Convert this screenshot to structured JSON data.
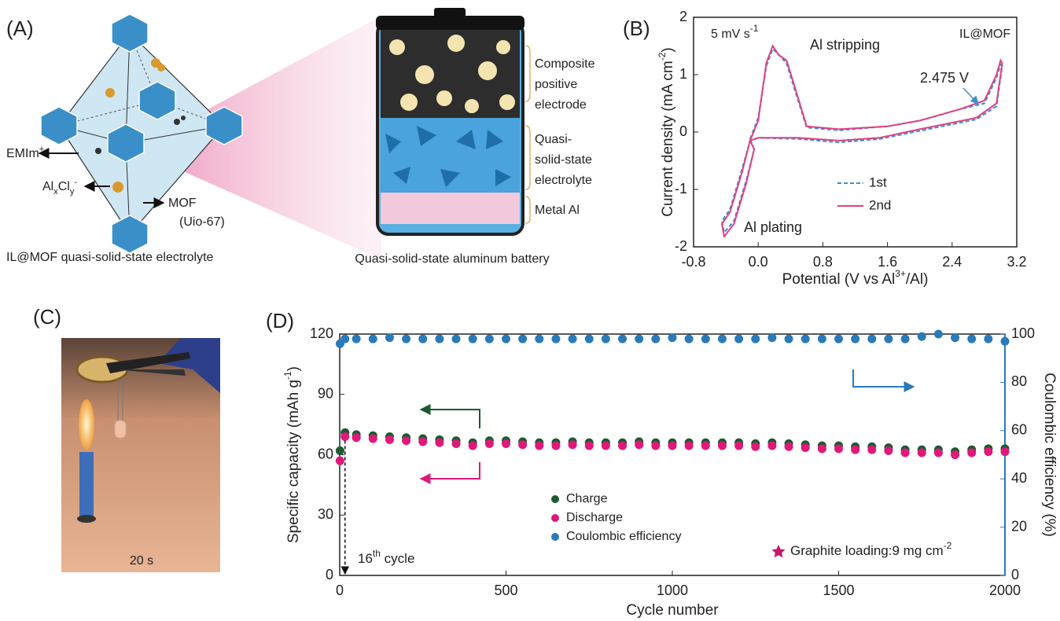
{
  "panel_labels": [
    "(A)",
    "(B)",
    "(C)",
    "(D)"
  ],
  "panel_a": {
    "ion_emim": [
      "EMIm",
      "+"
    ],
    "ion_alcl": [
      "Al",
      "x",
      "Cl",
      "y",
      "-"
    ],
    "mof": [
      "MOF",
      "(Uio-67)"
    ],
    "caption_left": "IL@MOF quasi-solid-state electrolyte",
    "layers": [
      [
        "Composite",
        "positive",
        "electrode"
      ],
      [
        "Quasi-",
        "solid-state",
        "electrolyte"
      ],
      [
        "Metal Al"
      ]
    ],
    "caption_right": "Quasi-solid-state aluminum battery"
  },
  "panel_c": {
    "time": "20 s"
  },
  "chart_data": [
    {
      "type": "line",
      "xlabel": [
        "Potential (V vs Al",
        "3+",
        "/Al)"
      ],
      "ylabel": [
        "Current density (mA cm",
        "-2",
        ")"
      ],
      "rate": [
        "5 mV s",
        "-1"
      ],
      "sample": "IL@MOF",
      "annotations": [
        "Al stripping",
        "2.475 V",
        "Al plating"
      ],
      "xlim": [
        -0.8,
        3.2
      ],
      "xticks": [
        -0.8,
        {
          "value": 0,
          "label": "0.0"
        },
        0.8,
        1.6,
        2.4,
        3.2
      ],
      "ylim": [
        -2,
        2
      ],
      "yticks": [
        -2,
        -1,
        0,
        1,
        2
      ],
      "series": [
        {
          "name": "1st",
          "color": "#3a8fd0",
          "style": "dashed",
          "x": [
            -0.1,
            0.0,
            0.1,
            0.18,
            0.25,
            0.35,
            0.45,
            0.6,
            1.0,
            1.6,
            2.0,
            2.5,
            2.8,
            2.95,
            3.0,
            3.02,
            2.95,
            2.7,
            2.0,
            1.5,
            1.0,
            0.5,
            0.0,
            -0.1,
            -0.2,
            -0.35,
            -0.45,
            -0.42,
            -0.3,
            -0.15,
            -0.05,
            -0.1
          ],
          "values": [
            -0.12,
            0.25,
            1.15,
            1.45,
            1.35,
            1.2,
            0.75,
            0.08,
            0.03,
            0.1,
            0.2,
            0.4,
            0.5,
            0.95,
            1.18,
            1.15,
            0.45,
            0.22,
            0.02,
            -0.12,
            -0.18,
            -0.12,
            -0.1,
            -0.15,
            -0.65,
            -1.35,
            -1.55,
            -1.75,
            -1.55,
            -0.85,
            -0.3,
            -0.12
          ]
        },
        {
          "name": "2nd",
          "color": "#e0417f",
          "style": "solid",
          "x": [
            -0.1,
            0.0,
            0.1,
            0.18,
            0.25,
            0.35,
            0.45,
            0.6,
            1.0,
            1.6,
            2.0,
            2.5,
            2.8,
            2.95,
            3.0,
            3.02,
            2.95,
            2.7,
            2.0,
            1.5,
            1.0,
            0.5,
            0.0,
            -0.1,
            -0.2,
            -0.35,
            -0.45,
            -0.42,
            -0.3,
            -0.15,
            -0.05,
            -0.1
          ],
          "values": [
            -0.15,
            0.2,
            1.2,
            1.5,
            1.35,
            1.25,
            0.8,
            0.1,
            0.05,
            0.1,
            0.2,
            0.4,
            0.55,
            1.0,
            1.25,
            1.2,
            0.5,
            0.25,
            0.05,
            -0.1,
            -0.15,
            -0.1,
            -0.1,
            -0.15,
            -0.7,
            -1.4,
            -1.6,
            -1.82,
            -1.6,
            -0.9,
            -0.3,
            -0.15
          ]
        }
      ]
    },
    {
      "type": "scatter",
      "xlabel": "Cycle number",
      "ylabel": [
        "Specific capacity (mAh g",
        "-1",
        ")"
      ],
      "y2label": "Coulombic efficiency (%)",
      "cycle_note": [
        "16",
        "th",
        " cycle"
      ],
      "note": [
        "Graphite loading:9 mg cm",
        "-2"
      ],
      "xlim": [
        0,
        2000
      ],
      "xticks": [
        0,
        500,
        1000,
        1500,
        2000
      ],
      "ylim": [
        0,
        120
      ],
      "yticks": [
        0,
        30,
        60,
        90,
        120
      ],
      "y2lim": [
        0,
        100
      ],
      "y2ticks": [
        0,
        20,
        40,
        60,
        80,
        100
      ],
      "x": [
        1,
        16,
        50,
        100,
        150,
        200,
        250,
        300,
        350,
        400,
        450,
        500,
        550,
        600,
        650,
        700,
        750,
        800,
        850,
        900,
        950,
        1000,
        1050,
        1100,
        1150,
        1200,
        1250,
        1300,
        1350,
        1400,
        1450,
        1500,
        1550,
        1600,
        1650,
        1700,
        1750,
        1800,
        1850,
        1900,
        1950,
        2000
      ],
      "series": [
        {
          "name": "Charge",
          "color": "#1d5a30",
          "values": [
            62,
            71,
            70,
            69.5,
            69,
            68.5,
            68,
            67.5,
            67,
            66,
            67,
            67,
            66.5,
            66,
            66,
            66.5,
            66,
            66,
            66,
            66.5,
            66,
            66,
            66,
            66,
            66,
            66,
            65.5,
            66,
            65.5,
            65,
            64.5,
            64.5,
            64,
            64,
            63.5,
            62.5,
            62.5,
            62.5,
            61.5,
            62.5,
            63,
            63
          ]
        },
        {
          "name": "Discharge",
          "color": "#e0187a",
          "values": [
            57,
            69,
            68.5,
            68,
            67.5,
            67,
            66.5,
            66,
            65.5,
            64.5,
            65.5,
            65.5,
            65,
            64.5,
            64.5,
            65,
            64.5,
            64.5,
            64.5,
            65,
            64.5,
            64.5,
            64.5,
            64.5,
            64.5,
            64.5,
            64,
            64.5,
            64,
            63.5,
            63,
            63,
            62.5,
            62.5,
            62,
            61,
            61,
            61,
            60,
            61,
            61.5,
            61.5
          ]
        },
        {
          "name": "Coulombic efficiency",
          "color": "#2a7ab8",
          "axis": "y2",
          "values": [
            96,
            98,
            98,
            98,
            98.5,
            98,
            98,
            98,
            98,
            98,
            98,
            98,
            98,
            98,
            98,
            98,
            98,
            98,
            98,
            98,
            98,
            98.5,
            98,
            98,
            98,
            98,
            98,
            98.5,
            98,
            98,
            98,
            98,
            98,
            98,
            98,
            98,
            99,
            100,
            98.5,
            98,
            98,
            97
          ]
        }
      ]
    }
  ]
}
